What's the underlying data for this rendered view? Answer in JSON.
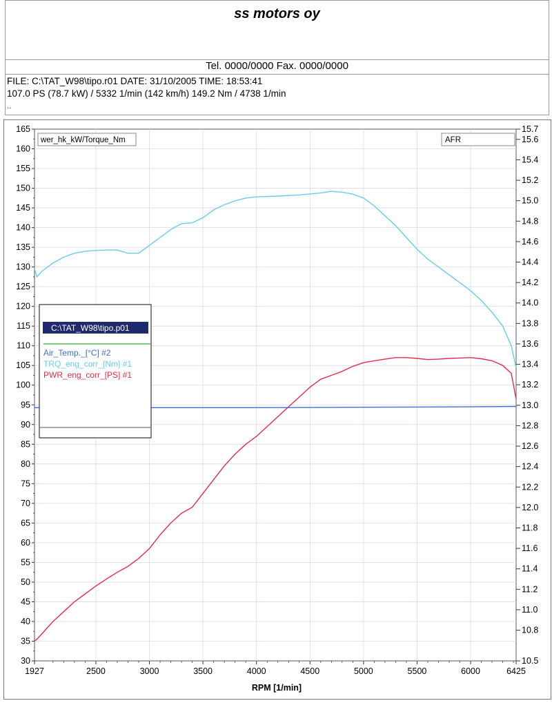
{
  "header": {
    "company": "ss motors oy",
    "contact": "Tel. 0000/0000   Fax. 0000/0000"
  },
  "info": {
    "line1": "FILE: C:\\TAT_W98\\tipo.r01  DATE: 31/10/2005  TIME: 18:53:41",
    "line2": "107.0 PS  (78.7 kW) / 5332 1/min (142 km/h)     149.2 Nm / 4738 1/min",
    "line3": ".."
  },
  "chart_data": {
    "type": "line",
    "xlabel": "RPM  [1/min]",
    "y_left_label": "wer_hk_kW/Torque_Nm",
    "y_right_label": "AFR",
    "xlim": [
      1927,
      6425
    ],
    "ylim_left": [
      30,
      165
    ],
    "ylim_right": [
      10.5,
      15.7
    ],
    "x_ticks": [
      "1927",
      "2500",
      "3000",
      "3500",
      "4000",
      "4500",
      "5000",
      "5500",
      "6000",
      "6425"
    ],
    "x_tick_values": [
      1927,
      2500,
      3000,
      3500,
      4000,
      4500,
      5000,
      5500,
      6000,
      6425
    ],
    "y_left_ticks": [
      165,
      160,
      155,
      150,
      145,
      140,
      135,
      130,
      125,
      120,
      115,
      110,
      105,
      100,
      95,
      90,
      85,
      80,
      75,
      70,
      65,
      60,
      55,
      50,
      45,
      40,
      35,
      30
    ],
    "y_right_ticks": [
      "15.7",
      "15.6",
      "15.4",
      "15.2",
      "15.0",
      "14.8",
      "14.6",
      "14.4",
      "14.2",
      "14.0",
      "13.8",
      "13.6",
      "13.4",
      "13.2",
      "13.0",
      "12.8",
      "12.6",
      "12.4",
      "12.2",
      "12.0",
      "11.8",
      "11.6",
      "11.4",
      "11.2",
      "11.0",
      "10.8",
      "10.5"
    ],
    "y_right_tick_values": [
      15.7,
      15.6,
      15.4,
      15.2,
      15.0,
      14.8,
      14.6,
      14.4,
      14.2,
      14.0,
      13.8,
      13.6,
      13.4,
      13.2,
      13.0,
      12.8,
      12.6,
      12.4,
      12.2,
      12.0,
      11.8,
      11.6,
      11.4,
      11.2,
      11.0,
      10.8,
      10.5
    ],
    "grid": true,
    "legend": {
      "title": "C:\\TAT_W98\\tipo.p01",
      "entries": [
        {
          "label": "Air_Temp._[°C] #2",
          "color": "#3b6fd8"
        },
        {
          "label": "TRQ_eng_corr_[Nm] #1",
          "color": "#66ccee"
        },
        {
          "label": "PWR_eng_corr_[PS] #1",
          "color": "#e8294a"
        }
      ]
    },
    "series": [
      {
        "name": "TRQ_eng_corr_[Nm] #1",
        "color": "#66ccee",
        "x": [
          1927,
          1950,
          2000,
          2100,
          2200,
          2300,
          2400,
          2500,
          2600,
          2700,
          2800,
          2900,
          3000,
          3100,
          3200,
          3300,
          3400,
          3500,
          3600,
          3700,
          3800,
          3900,
          4000,
          4200,
          4400,
          4600,
          4700,
          4800,
          4900,
          5000,
          5100,
          5200,
          5300,
          5400,
          5500,
          5600,
          5700,
          5800,
          5900,
          6000,
          6100,
          6200,
          6300,
          6380,
          6425
        ],
        "y": [
          129.5,
          127.5,
          129,
          131,
          132.5,
          133.5,
          134,
          134.2,
          134.3,
          134.3,
          133.5,
          133.5,
          135.5,
          137.5,
          139.5,
          141,
          141.2,
          142.5,
          144.5,
          145.8,
          146.8,
          147.5,
          147.8,
          148,
          148.3,
          148.8,
          149.2,
          149,
          148.5,
          147.5,
          145.5,
          143,
          140.5,
          137.5,
          134.5,
          132,
          130,
          128,
          126,
          124,
          121.5,
          118.5,
          115,
          110,
          104.5
        ]
      },
      {
        "name": "PWR_eng_corr_[PS] #1",
        "color": "#e8294a",
        "x": [
          1927,
          1950,
          2000,
          2100,
          2200,
          2300,
          2400,
          2500,
          2600,
          2700,
          2800,
          2900,
          3000,
          3100,
          3200,
          3300,
          3400,
          3500,
          3600,
          3700,
          3800,
          3900,
          4000,
          4100,
          4200,
          4300,
          4400,
          4500,
          4600,
          4700,
          4800,
          4900,
          5000,
          5100,
          5200,
          5300,
          5400,
          5500,
          5600,
          5700,
          5800,
          5900,
          6000,
          6100,
          6200,
          6300,
          6380,
          6425
        ],
        "y": [
          35,
          35.5,
          37,
          40,
          42.5,
          45,
          47,
          49,
          50.8,
          52.5,
          54,
          56,
          58.5,
          62,
          65,
          67.5,
          69,
          72.5,
          76,
          79.5,
          82.5,
          85,
          87,
          89.5,
          92,
          94.5,
          97,
          99.5,
          101.5,
          102.5,
          103.5,
          104.8,
          105.7,
          106.2,
          106.6,
          107,
          107,
          106.8,
          106.5,
          106.6,
          106.8,
          106.9,
          107,
          106.7,
          106.2,
          105,
          103,
          96.5
        ]
      },
      {
        "name": "Air_Temp._[°C] #2",
        "color": "#3b6fd8",
        "x": [
          1927,
          3000,
          4000,
          5000,
          6000,
          6425
        ],
        "y": [
          94.3,
          94.3,
          94.3,
          94.4,
          94.5,
          94.6
        ]
      }
    ]
  }
}
